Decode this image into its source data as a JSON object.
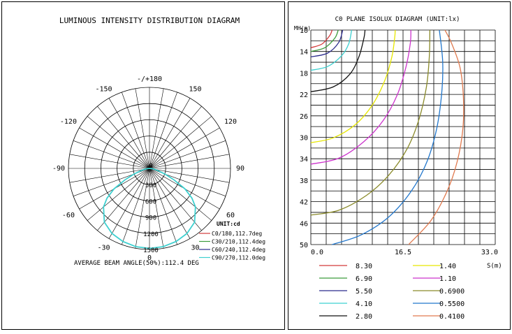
{
  "chart_data": [
    {
      "type": "polar",
      "title": "LUMINOUS INTENSITY DISTRIBUTION DIAGRAM",
      "angle_labels": [
        "-/+180",
        "-150",
        "150",
        "-120",
        "120",
        "-90",
        "90",
        "-60",
        "60",
        "-30",
        "30",
        "0"
      ],
      "radial_labels": [
        "0",
        "300",
        "600",
        "900",
        "1200",
        "1500"
      ],
      "radial_max": 1500,
      "unit_label": "UNIT:cd",
      "legend": [
        {
          "label": "C0/180,112.7deg",
          "color": "#d33b3b"
        },
        {
          "label": "C30/210,112.4deg",
          "color": "#3c9c3c"
        },
        {
          "label": "C60/240,112.4deg",
          "color": "#2a2a8c"
        },
        {
          "label": "C90/270,112.0deg",
          "color": "#3fd0d0"
        }
      ],
      "footer": "AVERAGE BEAM ANGLE(50%):112.4 DEG",
      "series": [
        {
          "name": "C90/270,112.0deg",
          "color": "#3fd0d0",
          "points": [
            {
              "angle": 0,
              "value": 1480
            },
            {
              "angle": 10,
              "value": 1470
            },
            {
              "angle": 20,
              "value": 1440
            },
            {
              "angle": 30,
              "value": 1390
            },
            {
              "angle": 40,
              "value": 1300
            },
            {
              "angle": 50,
              "value": 1110
            },
            {
              "angle": 55,
              "value": 960
            },
            {
              "angle": 60,
              "value": 760
            },
            {
              "angle": 65,
              "value": 500
            },
            {
              "angle": 70,
              "value": 300
            },
            {
              "angle": 75,
              "value": 170
            },
            {
              "angle": 80,
              "value": 90
            },
            {
              "angle": 85,
              "value": 40
            },
            {
              "angle": 90,
              "value": 0
            }
          ]
        }
      ]
    },
    {
      "type": "isolux",
      "title": "C0 PLANE ISOLUX DIAGRAM (UNIT:lx)",
      "ylabel": "MH(m)",
      "xlabel": "S(m)",
      "x_ticks": [
        "0.0",
        "16.5",
        "33.0"
      ],
      "y_ticks": [
        "10",
        "14",
        "18",
        "22",
        "26",
        "30",
        "34",
        "38",
        "42",
        "46",
        "50"
      ],
      "xlim": [
        0,
        33
      ],
      "ylim": [
        10,
        50
      ],
      "contours": [
        {
          "value": 8.3,
          "label": "8.30",
          "color": "#d33b3b",
          "points": [
            [
              0,
              13.3
            ],
            [
              2,
              12.6
            ],
            [
              3.4,
              11.0
            ],
            [
              3.8,
              10.0
            ]
          ]
        },
        {
          "value": 6.9,
          "label": "6.90",
          "color": "#3c9c3c",
          "points": [
            [
              0,
              14.0
            ],
            [
              2.5,
              13.3
            ],
            [
              4.3,
              11.5
            ],
            [
              4.9,
              10.0
            ]
          ]
        },
        {
          "value": 5.5,
          "label": "5.50",
          "color": "#2a2a8c",
          "points": [
            [
              0,
              15.0
            ],
            [
              3.0,
              14.3
            ],
            [
              5.0,
              12.3
            ],
            [
              5.7,
              10.0
            ]
          ]
        },
        {
          "value": 4.1,
          "label": "4.10",
          "color": "#3fd0d0",
          "points": [
            [
              0,
              17.5
            ],
            [
              3.0,
              16.8
            ],
            [
              5.5,
              14.8
            ],
            [
              6.8,
              12.5
            ],
            [
              7.3,
              10.0
            ]
          ]
        },
        {
          "value": 2.8,
          "label": "2.80",
          "color": "#111111",
          "points": [
            [
              0,
              21.5
            ],
            [
              4.0,
              20.6
            ],
            [
              7.0,
              18.2
            ],
            [
              8.6,
              15.0
            ],
            [
              9.5,
              11.5
            ],
            [
              9.7,
              10.0
            ]
          ]
        },
        {
          "value": 1.4,
          "label": "1.40",
          "color": "#e6e600",
          "points": [
            [
              0,
              31.0
            ],
            [
              4.0,
              30.1
            ],
            [
              8.0,
              27.6
            ],
            [
              11.0,
              24.0
            ],
            [
              13.2,
              19.5
            ],
            [
              14.5,
              15.0
            ],
            [
              15.0,
              11.5
            ],
            [
              15.1,
              10.0
            ]
          ]
        },
        {
          "value": 1.1,
          "label": "1.10",
          "color": "#cc33cc",
          "points": [
            [
              0,
              35.0
            ],
            [
              5.0,
              33.9
            ],
            [
              9.5,
              30.8
            ],
            [
              13.0,
              26.8
            ],
            [
              15.5,
              22.0
            ],
            [
              17.0,
              17.0
            ],
            [
              17.8,
              12.5
            ],
            [
              17.9,
              10.0
            ]
          ]
        },
        {
          "value": 0.69,
          "label": "0.6900",
          "color": "#8a8a2a",
          "points": [
            [
              0,
              44.5
            ],
            [
              5.0,
              43.6
            ],
            [
              10.0,
              40.8
            ],
            [
              14.0,
              37.0
            ],
            [
              17.3,
              32.0
            ],
            [
              19.4,
              26.5
            ],
            [
              20.7,
              20.5
            ],
            [
              21.2,
              15.0
            ],
            [
              21.3,
              10.0
            ]
          ]
        },
        {
          "value": 0.55,
          "label": "0.5500",
          "color": "#2277cc",
          "points": [
            [
              3.8,
              50.0
            ],
            [
              9.0,
              48.2
            ],
            [
              14.0,
              44.8
            ],
            [
              18.0,
              40.0
            ],
            [
              20.8,
              34.5
            ],
            [
              22.5,
              28.5
            ],
            [
              23.4,
              22.0
            ],
            [
              23.6,
              16.0
            ],
            [
              23.0,
              10.0
            ]
          ]
        },
        {
          "value": 0.41,
          "label": "0.4100",
          "color": "#e07a4f",
          "points": [
            [
              17.5,
              50.0
            ],
            [
              21.5,
              45.5
            ],
            [
              24.4,
              40.0
            ],
            [
              26.2,
              34.5
            ],
            [
              27.2,
              28.5
            ],
            [
              27.3,
              22.5
            ],
            [
              26.7,
              17.0
            ],
            [
              25.2,
              12.5
            ],
            [
              24.0,
              10.0
            ]
          ]
        }
      ]
    }
  ]
}
